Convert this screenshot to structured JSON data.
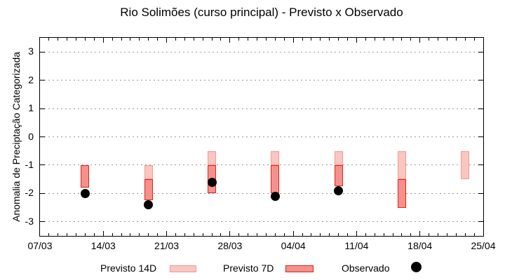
{
  "title": "Rio Solimões (curso principal) - Previsto x Observado",
  "y_axis_label": "Anomalia de Preciptação Categorizada",
  "legend": {
    "items": [
      {
        "label": "Previsto 14D",
        "marker": "bar",
        "fill": "#f9c6c0",
        "border": "#f09a93"
      },
      {
        "label": "Previsto 7D",
        "marker": "bar",
        "fill": "#f5918c",
        "border": "#e32119"
      },
      {
        "label": "Observado",
        "marker": "dot",
        "fill": "#000000",
        "border": "#000000"
      }
    ]
  },
  "colors": {
    "background": "#ffffff",
    "axis": "#000000",
    "grid": "#999999",
    "previsto14d_fill": "#f9c6c0",
    "previsto14d_border": "#f09a93",
    "previsto7d_fill": "#f5918c",
    "previsto7d_border": "#e32119",
    "observado": "#000000"
  },
  "chart_data": {
    "type": "bar",
    "subtype": "weekly range-bars (forecast) + scatter dots (observed)",
    "title": "Rio Solimões (curso principal) - Previsto x Observado",
    "xlabel": "",
    "ylabel": "Anomalia de Preciptação Categorizada",
    "ylim": [
      -3.5,
      3.5
    ],
    "y_tick_values": [
      3,
      2,
      1,
      0,
      -1,
      -2,
      -3
    ],
    "x_tick_labels": [
      "07/03",
      "14/03",
      "21/03",
      "28/03",
      "04/04",
      "11/04",
      "18/04",
      "25/04"
    ],
    "x_total_days": 49,
    "x_major_tick_every_days": 7,
    "x_minor_tick_every_days": 1,
    "grid": "horizontal dashed gray lines at integer y values, ticks mirrored on all four borders",
    "legend_position": "bottom",
    "categories": [
      "12/03",
      "19/03",
      "26/03",
      "02/04",
      "09/04",
      "16/04",
      "23/04"
    ],
    "category_days_from_axis_start": [
      5,
      12,
      19,
      26,
      33,
      40,
      47
    ],
    "bar_width_days": 0.95,
    "series": [
      {
        "name": "Previsto 14D",
        "type": "range-bar",
        "fill": "#f9c6c0",
        "border": "#f09a93",
        "ranges": [
          null,
          [
            -1.5,
            -1.0
          ],
          [
            -1.0,
            -0.5
          ],
          [
            -1.0,
            -0.5
          ],
          [
            -1.0,
            -0.5
          ],
          [
            -1.5,
            -0.5
          ],
          [
            -1.5,
            -0.5
          ]
        ]
      },
      {
        "name": "Previsto 7D",
        "type": "range-bar",
        "fill": "#f5918c",
        "border": "#e32119",
        "ranges": [
          [
            -1.8,
            -1.0
          ],
          [
            -2.25,
            -1.5
          ],
          [
            -2.0,
            -1.0
          ],
          [
            -2.0,
            -1.0
          ],
          [
            -1.75,
            -1.0
          ],
          [
            -2.5,
            -1.5
          ],
          null
        ]
      },
      {
        "name": "Observado",
        "type": "scatter",
        "color": "#000000",
        "values": [
          -2.0,
          -2.4,
          -1.6,
          -2.1,
          -1.9,
          null,
          null
        ]
      }
    ]
  }
}
